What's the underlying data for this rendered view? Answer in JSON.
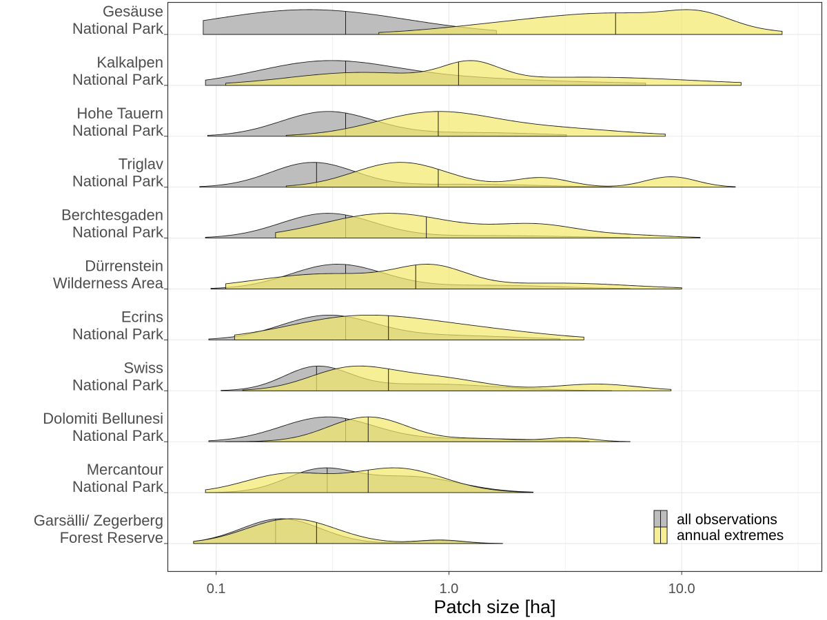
{
  "chart_data": {
    "type": "ridgeline",
    "xlabel": "Patch size [ha]",
    "xscale": "log10",
    "xlim": [
      0.062,
      40
    ],
    "xticks": [
      {
        "value": 0.1,
        "label": "0.1"
      },
      {
        "value": 1.0,
        "label": "1.0"
      },
      {
        "value": 10.0,
        "label": "10.0"
      }
    ],
    "legend": {
      "position": "bottom-right",
      "entries": [
        {
          "key": "all",
          "label": "all observations"
        },
        {
          "key": "ext",
          "label": "annual extremes"
        }
      ]
    },
    "colors": {
      "all": "#bdbdbd",
      "ext": "#f2e86a",
      "outline": "#1a1a1a",
      "grid": "#ebebeb"
    },
    "sites": [
      {
        "line1": "Gesäuse",
        "line2": "National Park",
        "all": {
          "range": [
            0.088,
            1.6
          ],
          "median": 0.36,
          "peaks": [
            [
              0.25,
              0.42,
              1.0
            ]
          ]
        },
        "ext": {
          "range": [
            0.5,
            27
          ],
          "median": 5.2,
          "peaks": [
            [
              1.5,
              0.3,
              0.3
            ],
            [
              5.5,
              0.35,
              1.0
            ],
            [
              12,
              0.13,
              0.55
            ]
          ]
        }
      },
      {
        "line1": "Kalkalpen",
        "line2": "National Park",
        "all": {
          "range": [
            0.09,
            7
          ],
          "median": 0.36,
          "peaks": [
            [
              0.3,
              0.3,
              1.0
            ],
            [
              1.2,
              0.3,
              0.22
            ],
            [
              4.5,
              0.35,
              0.1
            ]
          ]
        },
        "ext": {
          "range": [
            0.11,
            18
          ],
          "median": 1.1,
          "peaks": [
            [
              0.4,
              0.3,
              0.6
            ],
            [
              1.25,
              0.12,
              0.85
            ],
            [
              4,
              0.45,
              0.4
            ]
          ]
        }
      },
      {
        "line1": "Hohe Tauern",
        "line2": "National Park",
        "all": {
          "range": [
            0.092,
            3.2
          ],
          "median": 0.36,
          "peaks": [
            [
              0.3,
              0.2,
              1.0
            ],
            [
              1.3,
              0.3,
              0.15
            ]
          ]
        },
        "ext": {
          "range": [
            0.2,
            8.5
          ],
          "median": 0.9,
          "peaks": [
            [
              0.85,
              0.25,
              0.9
            ],
            [
              2.8,
              0.3,
              0.3
            ]
          ]
        }
      },
      {
        "line1": "Triglav",
        "line2": "National Park",
        "all": {
          "range": [
            0.085,
            5
          ],
          "median": 0.27,
          "peaks": [
            [
              0.26,
              0.18,
              1.0
            ],
            [
              1.2,
              0.3,
              0.12
            ]
          ]
        },
        "ext": {
          "range": [
            0.2,
            17
          ],
          "median": 0.9,
          "peaks": [
            [
              0.62,
              0.2,
              1.0
            ],
            [
              2.5,
              0.12,
              0.38
            ],
            [
              9,
              0.11,
              0.42
            ]
          ]
        }
      },
      {
        "line1": "Berchtesgaden",
        "line2": "National Park",
        "all": {
          "range": [
            0.09,
            6
          ],
          "median": 0.36,
          "peaks": [
            [
              0.3,
              0.2,
              1.0
            ],
            [
              1.5,
              0.35,
              0.1
            ]
          ]
        },
        "ext": {
          "range": [
            0.18,
            12
          ],
          "median": 0.8,
          "peaks": [
            [
              0.55,
              0.28,
              0.9
            ],
            [
              2.4,
              0.18,
              0.45
            ],
            [
              6,
              0.18,
              0.1
            ]
          ]
        }
      },
      {
        "line1": "Dürrenstein",
        "line2": "Wilderness Area",
        "all": {
          "range": [
            0.095,
            6
          ],
          "median": 0.36,
          "peaks": [
            [
              0.33,
              0.2,
              1.0
            ],
            [
              1.5,
              0.3,
              0.15
            ]
          ]
        },
        "ext": {
          "range": [
            0.11,
            10
          ],
          "median": 0.72,
          "peaks": [
            [
              0.3,
              0.3,
              0.65
            ],
            [
              0.85,
              0.15,
              0.8
            ],
            [
              3,
              0.3,
              0.25
            ]
          ]
        }
      },
      {
        "line1": "Ecrins",
        "line2": "National Park",
        "all": {
          "range": [
            0.093,
            3
          ],
          "median": 0.36,
          "peaks": [
            [
              0.3,
              0.2,
              1.0
            ],
            [
              1,
              0.3,
              0.18
            ]
          ]
        },
        "ext": {
          "range": [
            0.12,
            3.8
          ],
          "median": 0.55,
          "peaks": [
            [
              0.4,
              0.3,
              1.0
            ],
            [
              1.3,
              0.3,
              0.4
            ]
          ]
        }
      },
      {
        "line1": "Swiss",
        "line2": "National Park",
        "all": {
          "range": [
            0.105,
            5
          ],
          "median": 0.27,
          "peaks": [
            [
              0.27,
              0.14,
              1.0
            ],
            [
              0.8,
              0.3,
              0.3
            ]
          ]
        },
        "ext": {
          "range": [
            0.13,
            9
          ],
          "median": 0.55,
          "peaks": [
            [
              0.38,
              0.18,
              1.0
            ],
            [
              0.9,
              0.2,
              0.55
            ],
            [
              4.3,
              0.18,
              0.3
            ]
          ]
        }
      },
      {
        "line1": "Dolomiti Bellunesi",
        "line2": "National Park",
        "all": {
          "range": [
            0.093,
            4
          ],
          "median": 0.36,
          "peaks": [
            [
              0.3,
              0.2,
              1.0
            ],
            [
              1.3,
              0.3,
              0.12
            ]
          ]
        },
        "ext": {
          "range": [
            0.11,
            6
          ],
          "median": 0.45,
          "peaks": [
            [
              0.45,
              0.17,
              1.0
            ],
            [
              1.4,
              0.15,
              0.12
            ],
            [
              3.3,
              0.1,
              0.16
            ]
          ]
        }
      },
      {
        "line1": "Mercantour",
        "line2": "National Park",
        "all": {
          "range": [
            0.09,
            2.3
          ],
          "median": 0.3,
          "peaks": [
            [
              0.28,
              0.15,
              1.0
            ],
            [
              0.7,
              0.2,
              0.7
            ]
          ]
        },
        "ext": {
          "range": [
            0.09,
            2.3
          ],
          "median": 0.45,
          "peaks": [
            [
              0.2,
              0.18,
              0.6
            ],
            [
              0.6,
              0.2,
              0.8
            ]
          ]
        }
      },
      {
        "line1": "Garsälli/ Zegerberg",
        "line2": "Forest Reserve",
        "all": {
          "range": [
            0.08,
            1.7
          ],
          "median": 0.18,
          "peaks": [
            [
              0.19,
              0.17,
              1.0
            ],
            [
              0.9,
              0.1,
              0.12
            ]
          ]
        },
        "ext": {
          "range": [
            0.08,
            1.7
          ],
          "median": 0.27,
          "peaks": [
            [
              0.21,
              0.19,
              1.0
            ],
            [
              0.92,
              0.1,
              0.14
            ]
          ]
        }
      }
    ]
  }
}
